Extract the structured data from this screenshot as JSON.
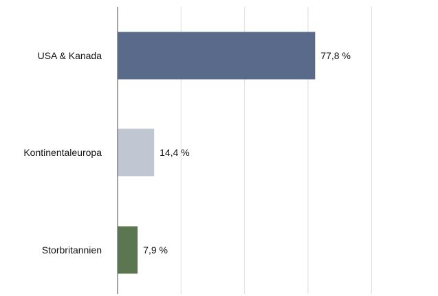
{
  "chart_data": {
    "type": "bar",
    "orientation": "horizontal",
    "categories": [
      "USA & Kanada",
      "Kontinentaleuropa",
      "Storbritannien"
    ],
    "values": [
      77.8,
      14.4,
      7.9
    ],
    "value_labels": [
      "77,8 %",
      "14,4 %",
      "7,9 %"
    ],
    "colors": [
      "#5a6a8a",
      "#c0c6d2",
      "#5d7652"
    ],
    "xlim": [
      0,
      100
    ],
    "grid": true,
    "legend": "none",
    "title": "",
    "xlabel": "",
    "ylabel": ""
  }
}
